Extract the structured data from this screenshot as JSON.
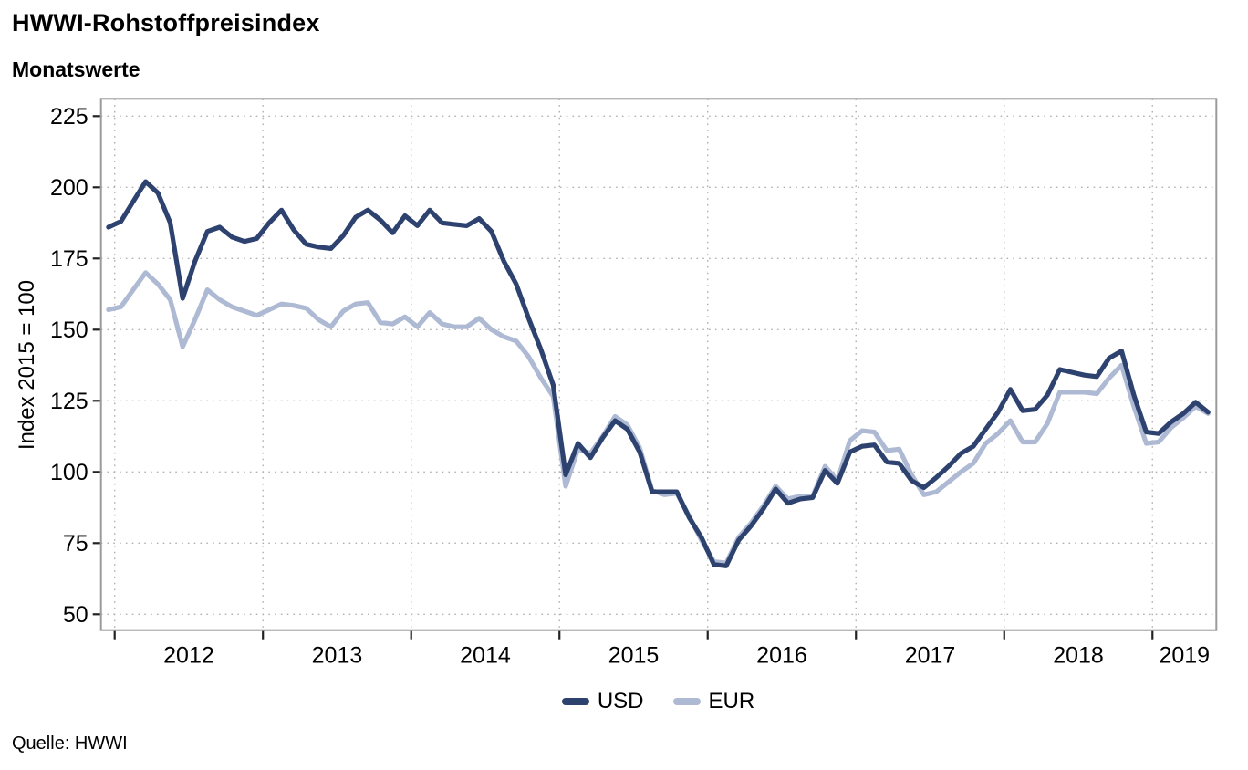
{
  "page": {
    "title": "HWWI-Rohstoffpreisindex",
    "subtitle": "Monatswerte",
    "source": "Quelle: HWWI",
    "y_axis_title": "Index 2015 = 100"
  },
  "chart_data": {
    "type": "line",
    "title": "HWWI-Rohstoffpreisindex",
    "subtitle": "Monatswerte",
    "source": "Quelle: HWWI",
    "xlabel": "",
    "ylabel": "Index 2015 = 100",
    "x_unit": "month",
    "x_start": "2011-12",
    "x_end": "2019-05",
    "x_tick_labels": [
      "2012",
      "2013",
      "2014",
      "2015",
      "2016",
      "2017",
      "2018",
      "2019"
    ],
    "y_ticks": [
      50,
      75,
      100,
      125,
      150,
      175,
      200,
      225
    ],
    "ylim": [
      50,
      225
    ],
    "grid": "dotted",
    "grid_color": "#b0b0b0",
    "frame_color": "#9b9b9b",
    "legend_position": "bottom",
    "series": [
      {
        "name": "USD",
        "color": "#2e4270",
        "values": [
          186,
          188,
          195,
          202,
          198,
          187.5,
          161,
          174,
          184.5,
          186,
          182.5,
          181,
          182,
          187.5,
          192,
          185,
          180,
          179,
          178.5,
          183,
          189.5,
          192,
          188.5,
          184,
          190,
          186.5,
          192,
          187.5,
          187,
          186.5,
          189,
          184.5,
          174,
          166,
          154,
          143,
          130.5,
          99,
          110,
          105,
          112,
          118,
          115,
          107,
          93,
          93,
          93,
          84,
          77,
          67.5,
          67,
          76,
          81,
          87,
          94,
          89,
          90.5,
          91,
          100.5,
          96,
          107,
          109,
          109.5,
          103.5,
          103,
          97,
          94.5,
          98,
          102,
          106.5,
          109,
          115,
          121,
          129,
          121.5,
          122,
          127,
          136,
          135,
          134,
          133.5,
          140,
          142.5,
          127,
          114,
          113.5,
          117.5,
          120.5,
          124.5,
          121
        ]
      },
      {
        "name": "EUR",
        "color": "#aebad3",
        "values": [
          157,
          158,
          164,
          170,
          166,
          160.5,
          144,
          153.5,
          164,
          160.5,
          158,
          156.5,
          155,
          157,
          159,
          158.5,
          157.5,
          153.5,
          151,
          156.5,
          159,
          159.5,
          152.5,
          152,
          154.5,
          151,
          156,
          152,
          151,
          151,
          154,
          150,
          147.5,
          146,
          140.5,
          133,
          126.5,
          95,
          108,
          106.5,
          112.5,
          119.5,
          116.5,
          108.5,
          93.5,
          92,
          92.5,
          84.5,
          76,
          68.5,
          68,
          77,
          82,
          88,
          95,
          90.5,
          91.5,
          91.5,
          102,
          97,
          111,
          114.5,
          114,
          107.5,
          108,
          99,
          92,
          93,
          96.5,
          100,
          103,
          110,
          113.5,
          118,
          110.5,
          110.5,
          117,
          128,
          128,
          128,
          127.5,
          133,
          137.5,
          123,
          110,
          110.5,
          115.5,
          119,
          123,
          120.5
        ]
      }
    ]
  }
}
